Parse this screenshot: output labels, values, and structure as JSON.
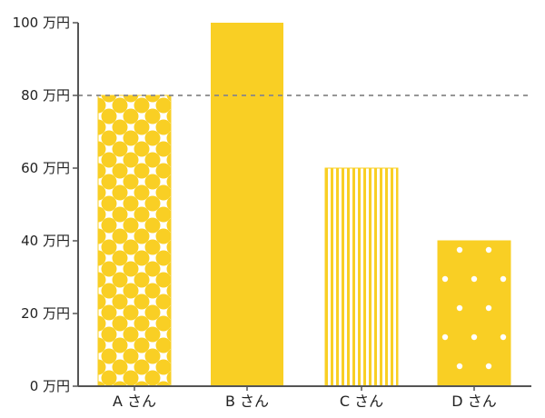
{
  "chart_data": {
    "type": "bar",
    "categories": [
      "A さん",
      "B さん",
      "C さん",
      "D さん"
    ],
    "values": [
      80,
      100,
      60,
      40
    ],
    "ylim": [
      0,
      100
    ],
    "yticks": [
      {
        "value": 0,
        "label": "0 万円"
      },
      {
        "value": 20,
        "label": "20 万円"
      },
      {
        "value": 40,
        "label": "40 万円"
      },
      {
        "value": 60,
        "label": "60 万円"
      },
      {
        "value": 80,
        "label": "80 万円"
      },
      {
        "value": 100,
        "label": "100 万円"
      }
    ],
    "reference_line": {
      "value": 80,
      "style": "dashed"
    },
    "bar_patterns": [
      "dots-large",
      "solid",
      "vertical-stripes",
      "dots-small"
    ],
    "grid": false,
    "legend": "none"
  },
  "colors": {
    "bar": "#f9cf24",
    "axis": "#555555",
    "reference_line": "#888888",
    "text": "#222222"
  }
}
